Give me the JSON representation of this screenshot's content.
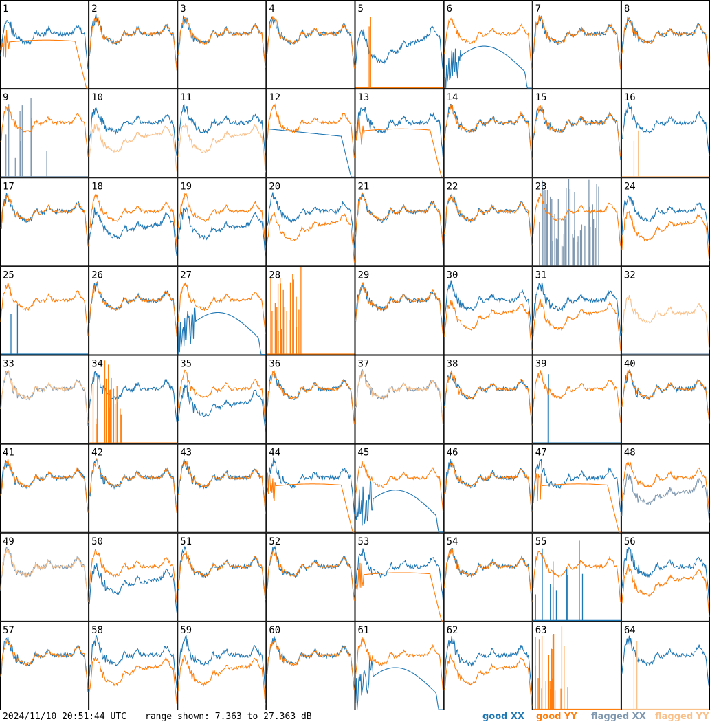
{
  "footer": {
    "timestamp": "2024/11/10 20:51:44 UTC",
    "range_text": "range shown: 7.363 to 27.363 dB"
  },
  "legend": [
    {
      "label": "good XX",
      "color": "#1f77b4"
    },
    {
      "label": "good YY",
      "color": "#ff7f0e"
    },
    {
      "label": "flagged XX",
      "color": "#7f98b0"
    },
    {
      "label": "flagged YY",
      "color": "#f9c08a"
    }
  ],
  "chart_data": {
    "type": "line",
    "title": "",
    "grid": {
      "rows": 8,
      "cols": 8
    },
    "ylim_db": [
      7.363,
      27.363
    ],
    "panels": [
      {
        "id": 1,
        "xx": "good",
        "yy": "good",
        "pattern": "yy_rolloff"
      },
      {
        "id": 2,
        "xx": "good",
        "yy": "good",
        "pattern": "normal"
      },
      {
        "id": 3,
        "xx": "good",
        "yy": "good",
        "pattern": "normal"
      },
      {
        "id": 4,
        "xx": "good",
        "yy": "good",
        "pattern": "normal"
      },
      {
        "id": 5,
        "xx": "good",
        "yy": "good",
        "pattern": "yy_dead_xx_low"
      },
      {
        "id": 6,
        "xx": "good",
        "yy": "good",
        "pattern": "xx_hump"
      },
      {
        "id": 7,
        "xx": "good",
        "yy": "good",
        "pattern": "normal"
      },
      {
        "id": 8,
        "xx": "good",
        "yy": "good",
        "pattern": "normal"
      },
      {
        "id": 9,
        "xx": "flagged",
        "yy": "good",
        "pattern": "xx_spikes"
      },
      {
        "id": 10,
        "xx": "good",
        "yy": "flagged",
        "pattern": "yy_low"
      },
      {
        "id": 11,
        "xx": "good",
        "yy": "flagged",
        "pattern": "yy_low"
      },
      {
        "id": 12,
        "xx": "good",
        "yy": "good",
        "pattern": "xx_rolloff"
      },
      {
        "id": 13,
        "xx": "good",
        "yy": "good",
        "pattern": "yy_rolloff"
      },
      {
        "id": 14,
        "xx": "good",
        "yy": "good",
        "pattern": "normal"
      },
      {
        "id": 15,
        "xx": "good",
        "yy": "good",
        "pattern": "normal"
      },
      {
        "id": 16,
        "xx": "good",
        "yy": "flagged",
        "pattern": "yy_dead"
      },
      {
        "id": 17,
        "xx": "good",
        "yy": "good",
        "pattern": "normal"
      },
      {
        "id": 18,
        "xx": "good",
        "yy": "good",
        "pattern": "xx_low"
      },
      {
        "id": 19,
        "xx": "good",
        "yy": "good",
        "pattern": "xx_low"
      },
      {
        "id": 20,
        "xx": "good",
        "yy": "good",
        "pattern": "yy_low"
      },
      {
        "id": 21,
        "xx": "good",
        "yy": "good",
        "pattern": "normal"
      },
      {
        "id": 22,
        "xx": "good",
        "yy": "good",
        "pattern": "normal"
      },
      {
        "id": 23,
        "xx": "flagged",
        "yy": "good",
        "pattern": "xx_noisy"
      },
      {
        "id": 24,
        "xx": "good",
        "yy": "good",
        "pattern": "yy_low"
      },
      {
        "id": 25,
        "xx": "good",
        "yy": "good",
        "pattern": "xx_dead"
      },
      {
        "id": 26,
        "xx": "good",
        "yy": "good",
        "pattern": "normal"
      },
      {
        "id": 27,
        "xx": "good",
        "yy": "good",
        "pattern": "xx_hump"
      },
      {
        "id": 28,
        "xx": "good",
        "yy": "good",
        "pattern": "yy_spikes_only"
      },
      {
        "id": 29,
        "xx": "good",
        "yy": "good",
        "pattern": "normal"
      },
      {
        "id": 30,
        "xx": "good",
        "yy": "good",
        "pattern": "yy_low"
      },
      {
        "id": 31,
        "xx": "good",
        "yy": "good",
        "pattern": "yy_low"
      },
      {
        "id": 32,
        "xx": "flagged",
        "yy": "flagged",
        "pattern": "yy_only_light"
      },
      {
        "id": 33,
        "xx": "flagged",
        "yy": "flagged",
        "pattern": "normal"
      },
      {
        "id": 34,
        "xx": "good",
        "yy": "good",
        "pattern": "yy_spikes"
      },
      {
        "id": 35,
        "xx": "good",
        "yy": "good",
        "pattern": "xx_low"
      },
      {
        "id": 36,
        "xx": "good",
        "yy": "good",
        "pattern": "normal"
      },
      {
        "id": 37,
        "xx": "flagged",
        "yy": "flagged",
        "pattern": "normal"
      },
      {
        "id": 38,
        "xx": "good",
        "yy": "good",
        "pattern": "normal"
      },
      {
        "id": 39,
        "xx": "good",
        "yy": "good",
        "pattern": "xx_dead"
      },
      {
        "id": 40,
        "xx": "good",
        "yy": "good",
        "pattern": "normal"
      },
      {
        "id": 41,
        "xx": "good",
        "yy": "good",
        "pattern": "normal"
      },
      {
        "id": 42,
        "xx": "good",
        "yy": "good",
        "pattern": "normal"
      },
      {
        "id": 43,
        "xx": "good",
        "yy": "good",
        "pattern": "normal"
      },
      {
        "id": 44,
        "xx": "good",
        "yy": "good",
        "pattern": "yy_rolloff"
      },
      {
        "id": 45,
        "xx": "good",
        "yy": "good",
        "pattern": "xx_hump"
      },
      {
        "id": 46,
        "xx": "good",
        "yy": "good",
        "pattern": "normal"
      },
      {
        "id": 47,
        "xx": "good",
        "yy": "good",
        "pattern": "yy_rolloff"
      },
      {
        "id": 48,
        "xx": "flagged",
        "yy": "good",
        "pattern": "xx_low"
      },
      {
        "id": 49,
        "xx": "flagged",
        "yy": "flagged",
        "pattern": "normal"
      },
      {
        "id": 50,
        "xx": "good",
        "yy": "good",
        "pattern": "xx_low"
      },
      {
        "id": 51,
        "xx": "good",
        "yy": "good",
        "pattern": "normal"
      },
      {
        "id": 52,
        "xx": "good",
        "yy": "good",
        "pattern": "normal"
      },
      {
        "id": 53,
        "xx": "good",
        "yy": "good",
        "pattern": "yy_rolloff"
      },
      {
        "id": 54,
        "xx": "good",
        "yy": "good",
        "pattern": "normal"
      },
      {
        "id": 55,
        "xx": "good",
        "yy": "good",
        "pattern": "xx_spikes"
      },
      {
        "id": 56,
        "xx": "good",
        "yy": "good",
        "pattern": "yy_low"
      },
      {
        "id": 57,
        "xx": "good",
        "yy": "good",
        "pattern": "normal"
      },
      {
        "id": 58,
        "xx": "good",
        "yy": "good",
        "pattern": "yy_low"
      },
      {
        "id": 59,
        "xx": "good",
        "yy": "good",
        "pattern": "yy_low"
      },
      {
        "id": 60,
        "xx": "good",
        "yy": "good",
        "pattern": "normal"
      },
      {
        "id": 61,
        "xx": "good",
        "yy": "good",
        "pattern": "xx_hump"
      },
      {
        "id": 62,
        "xx": "good",
        "yy": "good",
        "pattern": "yy_low"
      },
      {
        "id": 63,
        "xx": "good",
        "yy": "good",
        "pattern": "yy_spikes_only"
      },
      {
        "id": 64,
        "xx": "good",
        "yy": "flagged",
        "pattern": "yy_dead"
      }
    ]
  }
}
